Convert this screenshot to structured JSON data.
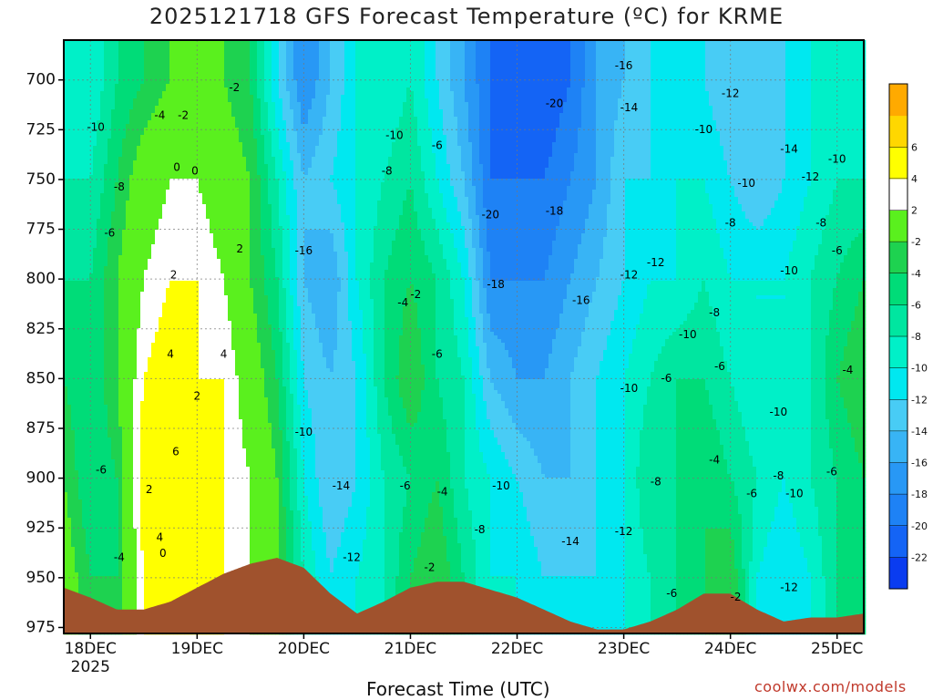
{
  "title": "2025121718 GFS Forecast Temperature (ºC) for KRME",
  "credit": "coolwx.com/models",
  "chart_data": {
    "type": "heatmap",
    "title": "2025121718 GFS Forecast Temperature (ºC) for KRME",
    "xlabel": "Forecast Time (UTC)",
    "ylabel": "",
    "x_ticks": [
      "18DEC",
      "19DEC",
      "20DEC",
      "21DEC",
      "22DEC",
      "23DEC",
      "24DEC",
      "25DEC"
    ],
    "x_year_label": "2025",
    "xlim_days": [
      17.75,
      25.25
    ],
    "y_ticks": [
      700,
      725,
      750,
      775,
      800,
      825,
      850,
      875,
      900,
      925,
      950,
      975
    ],
    "ylim_hpa": [
      680,
      978
    ],
    "grid": true,
    "colorbar": {
      "levels": [
        -24,
        -22,
        -20,
        -18,
        -16,
        -14,
        -12,
        -10,
        -8,
        -6,
        -4,
        -2,
        2,
        4,
        6,
        8
      ],
      "labels": [
        "-22",
        "-20",
        "-18",
        "-16",
        "-14",
        "-12",
        "-10",
        "-8",
        "-6",
        "-4",
        "-2",
        "2",
        "4",
        "6"
      ],
      "colors": [
        "#0a3cf0",
        "#1464f5",
        "#1e82f5",
        "#2898f5",
        "#38b4f5",
        "#48ccf5",
        "#00e8f0",
        "#00f0c8",
        "#00e6a0",
        "#00dc78",
        "#1ed250",
        "#5af01e",
        "#ffffff",
        "#ffff00",
        "#ffd700",
        "#ffaa00"
      ]
    },
    "columns": [
      {
        "day": 17.75,
        "sfc": 955,
        "values": {
          "700": -8,
          "750": -8,
          "800": -6,
          "850": -4,
          "900": -2,
          "950": 0
        }
      },
      {
        "day": 18.0,
        "sfc": 960,
        "values": {
          "700": -10,
          "750": -8,
          "800": -6,
          "850": -6,
          "900": -6,
          "950": -4
        }
      },
      {
        "day": 18.25,
        "sfc": 966,
        "values": {
          "700": -6,
          "750": -4,
          "800": -2,
          "850": -2,
          "900": -4,
          "950": -4
        }
      },
      {
        "day": 18.5,
        "sfc": 966,
        "values": {
          "700": -4,
          "750": 0,
          "800": 2,
          "850": 4,
          "900": 6,
          "950": 4
        }
      },
      {
        "day": 18.75,
        "sfc": 962,
        "values": {
          "700": -2,
          "750": 2,
          "800": 4,
          "850": 6,
          "900": 6,
          "950": 4
        }
      },
      {
        "day": 19.0,
        "sfc": 955,
        "values": {
          "700": 0,
          "750": 2,
          "800": 4,
          "850": 4,
          "900": 4,
          "950": 4
        }
      },
      {
        "day": 19.25,
        "sfc": 948,
        "values": {
          "700": -2,
          "750": 0,
          "800": 2,
          "850": 4,
          "900": 4,
          "950": 4
        }
      },
      {
        "day": 19.5,
        "sfc": 943,
        "values": {
          "700": -4,
          "750": -2,
          "800": -2,
          "850": 0,
          "900": 2,
          "950": 2
        }
      },
      {
        "day": 19.75,
        "sfc": 940,
        "values": {
          "700": -12,
          "750": -8,
          "800": -6,
          "850": -4,
          "900": -2,
          "950": -2
        }
      },
      {
        "day": 20.0,
        "sfc": 945,
        "values": {
          "700": -18,
          "750": -14,
          "800": -14,
          "850": -12,
          "900": -10,
          "950": -8
        }
      },
      {
        "day": 20.25,
        "sfc": 958,
        "values": {
          "700": -14,
          "750": -12,
          "800": -16,
          "850": -14,
          "900": -14,
          "950": -12
        }
      },
      {
        "day": 20.5,
        "sfc": 968,
        "values": {
          "700": -10,
          "750": -10,
          "800": -10,
          "850": -12,
          "900": -12,
          "950": -10
        }
      },
      {
        "day": 20.75,
        "sfc": 962,
        "values": {
          "700": -10,
          "750": -8,
          "800": -6,
          "850": -6,
          "900": -8,
          "950": -8
        }
      },
      {
        "day": 21.0,
        "sfc": 955,
        "values": {
          "700": -8,
          "750": -6,
          "800": -4,
          "850": -2,
          "900": -6,
          "950": -4
        }
      },
      {
        "day": 21.25,
        "sfc": 952,
        "values": {
          "700": -12,
          "750": -10,
          "800": -6,
          "850": -6,
          "900": -4,
          "950": -2
        }
      },
      {
        "day": 21.5,
        "sfc": 952,
        "values": {
          "700": -16,
          "750": -14,
          "800": -10,
          "850": -8,
          "900": -8,
          "950": -6
        }
      },
      {
        "day": 21.75,
        "sfc": 956,
        "values": {
          "700": -20,
          "750": -20,
          "800": -18,
          "850": -14,
          "900": -10,
          "950": -10
        }
      },
      {
        "day": 22.0,
        "sfc": 960,
        "values": {
          "700": -22,
          "750": -20,
          "800": -18,
          "850": -16,
          "900": -12,
          "950": -10
        }
      },
      {
        "day": 22.25,
        "sfc": 966,
        "values": {
          "700": -22,
          "750": -20,
          "800": -18,
          "850": -16,
          "900": -14,
          "950": -12
        }
      },
      {
        "day": 22.5,
        "sfc": 972,
        "values": {
          "700": -20,
          "750": -18,
          "800": -16,
          "850": -14,
          "900": -14,
          "950": -12
        }
      },
      {
        "day": 22.75,
        "sfc": 976,
        "values": {
          "700": -16,
          "750": -16,
          "800": -14,
          "850": -12,
          "900": -12,
          "950": -12
        }
      },
      {
        "day": 23.0,
        "sfc": 976,
        "values": {
          "700": -14,
          "750": -12,
          "800": -12,
          "850": -10,
          "900": -10,
          "950": -10
        }
      },
      {
        "day": 23.25,
        "sfc": 972,
        "values": {
          "700": -12,
          "750": -12,
          "800": -10,
          "850": -8,
          "900": -6,
          "950": -8
        }
      },
      {
        "day": 23.5,
        "sfc": 966,
        "values": {
          "700": -12,
          "750": -10,
          "800": -10,
          "850": -6,
          "900": -6,
          "950": -6
        }
      },
      {
        "day": 23.75,
        "sfc": 958,
        "values": {
          "700": -12,
          "750": -10,
          "800": -8,
          "850": -6,
          "900": -4,
          "950": -4
        }
      },
      {
        "day": 24.0,
        "sfc": 958,
        "values": {
          "700": -14,
          "750": -12,
          "800": -10,
          "850": -8,
          "900": -6,
          "950": -2
        }
      },
      {
        "day": 24.25,
        "sfc": 966,
        "values": {
          "700": -14,
          "750": -14,
          "800": -10,
          "850": -10,
          "900": -8,
          "950": -10
        }
      },
      {
        "day": 24.5,
        "sfc": 972,
        "values": {
          "700": -12,
          "750": -12,
          "800": -10,
          "850": -10,
          "900": -10,
          "950": -12
        }
      },
      {
        "day": 24.75,
        "sfc": 970,
        "values": {
          "700": -10,
          "750": -10,
          "800": -8,
          "850": -8,
          "900": -8,
          "950": -10
        }
      },
      {
        "day": 25.0,
        "sfc": 970,
        "values": {
          "700": -10,
          "750": -8,
          "800": -6,
          "850": -4,
          "900": -6,
          "950": -6
        }
      },
      {
        "day": 25.25,
        "sfc": 968,
        "values": {
          "700": -10,
          "750": -8,
          "800": -4,
          "850": -2,
          "900": -4,
          "950": -6
        }
      }
    ],
    "annotations": [
      {
        "text": "-2",
        "day": 19.35,
        "p": 704
      },
      {
        "text": "-4",
        "day": 18.65,
        "p": 718
      },
      {
        "text": "-2",
        "day": 18.87,
        "p": 718
      },
      {
        "text": "-10",
        "day": 18.05,
        "p": 724
      },
      {
        "text": "0",
        "day": 18.81,
        "p": 744
      },
      {
        "text": "0",
        "day": 18.98,
        "p": 746
      },
      {
        "text": "-8",
        "day": 18.27,
        "p": 754
      },
      {
        "text": "-6",
        "day": 18.18,
        "p": 777
      },
      {
        "text": "2",
        "day": 19.4,
        "p": 785
      },
      {
        "text": "2",
        "day": 18.78,
        "p": 798
      },
      {
        "text": "4",
        "day": 18.75,
        "p": 838
      },
      {
        "text": "4",
        "day": 19.25,
        "p": 838
      },
      {
        "text": "2",
        "day": 19.0,
        "p": 859
      },
      {
        "text": "6",
        "day": 18.8,
        "p": 887
      },
      {
        "text": "-6",
        "day": 18.1,
        "p": 896
      },
      {
        "text": "2",
        "day": 18.55,
        "p": 906
      },
      {
        "text": "4",
        "day": 18.65,
        "p": 930
      },
      {
        "text": "0",
        "day": 18.68,
        "p": 938
      },
      {
        "text": "-4",
        "day": 18.27,
        "p": 940
      },
      {
        "text": "-16",
        "day": 20.0,
        "p": 786
      },
      {
        "text": "-10",
        "day": 20.0,
        "p": 877
      },
      {
        "text": "-14",
        "day": 20.35,
        "p": 904
      },
      {
        "text": "-12",
        "day": 20.45,
        "p": 940
      },
      {
        "text": "-8",
        "day": 20.78,
        "p": 746
      },
      {
        "text": "-10",
        "day": 20.85,
        "p": 728
      },
      {
        "text": "-6",
        "day": 21.25,
        "p": 733
      },
      {
        "text": "-4",
        "day": 20.93,
        "p": 812
      },
      {
        "text": "-2",
        "day": 21.05,
        "p": 808
      },
      {
        "text": "-6",
        "day": 21.25,
        "p": 838
      },
      {
        "text": "-6",
        "day": 20.95,
        "p": 904
      },
      {
        "text": "-4",
        "day": 21.3,
        "p": 907
      },
      {
        "text": "-2",
        "day": 21.18,
        "p": 945
      },
      {
        "text": "-20",
        "day": 21.75,
        "p": 768
      },
      {
        "text": "-18",
        "day": 21.8,
        "p": 803
      },
      {
        "text": "-18",
        "day": 22.35,
        "p": 766
      },
      {
        "text": "-20",
        "day": 22.35,
        "p": 712
      },
      {
        "text": "-16",
        "day": 22.6,
        "p": 811
      },
      {
        "text": "-10",
        "day": 21.85,
        "p": 904
      },
      {
        "text": "-8",
        "day": 21.65,
        "p": 926
      },
      {
        "text": "-14",
        "day": 22.5,
        "p": 932
      },
      {
        "text": "-16",
        "day": 23.0,
        "p": 693
      },
      {
        "text": "-14",
        "day": 23.05,
        "p": 714
      },
      {
        "text": "-12",
        "day": 23.3,
        "p": 792
      },
      {
        "text": "-12",
        "day": 23.05,
        "p": 798
      },
      {
        "text": "-10",
        "day": 23.05,
        "p": 855
      },
      {
        "text": "-12",
        "day": 23.0,
        "p": 927
      },
      {
        "text": "-8",
        "day": 23.3,
        "p": 902
      },
      {
        "text": "-6",
        "day": 23.4,
        "p": 850
      },
      {
        "text": "-10",
        "day": 23.6,
        "p": 828
      },
      {
        "text": "-8",
        "day": 23.85,
        "p": 817
      },
      {
        "text": "-6",
        "day": 23.9,
        "p": 844
      },
      {
        "text": "-6",
        "day": 23.45,
        "p": 958
      },
      {
        "text": "-4",
        "day": 23.85,
        "p": 891
      },
      {
        "text": "-2",
        "day": 24.05,
        "p": 960
      },
      {
        "text": "-12",
        "day": 24.0,
        "p": 707
      },
      {
        "text": "-10",
        "day": 23.75,
        "p": 725
      },
      {
        "text": "-10",
        "day": 24.15,
        "p": 752
      },
      {
        "text": "-8",
        "day": 24.0,
        "p": 772
      },
      {
        "text": "-6",
        "day": 24.2,
        "p": 908
      },
      {
        "text": "-8",
        "day": 24.45,
        "p": 899
      },
      {
        "text": "-10",
        "day": 24.6,
        "p": 908
      },
      {
        "text": "-10",
        "day": 24.45,
        "p": 867
      },
      {
        "text": "-10",
        "day": 24.55,
        "p": 796
      },
      {
        "text": "-14",
        "day": 24.55,
        "p": 735
      },
      {
        "text": "-12",
        "day": 24.75,
        "p": 749
      },
      {
        "text": "-10",
        "day": 25.0,
        "p": 740
      },
      {
        "text": "-8",
        "day": 24.85,
        "p": 772
      },
      {
        "text": "-6",
        "day": 25.0,
        "p": 786
      },
      {
        "text": "-4",
        "day": 25.1,
        "p": 846
      },
      {
        "text": "-6",
        "day": 24.95,
        "p": 897
      },
      {
        "text": "-12",
        "day": 24.55,
        "p": 955
      }
    ]
  }
}
